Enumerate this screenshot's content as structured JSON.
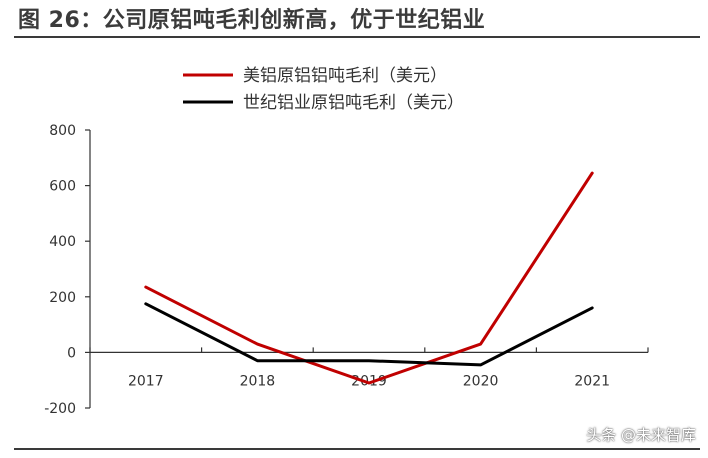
{
  "header": {
    "title": "图 26：公司原铝吨毛利创新高，优于世纪铝业"
  },
  "watermark": {
    "text": "头条 @未来智库"
  },
  "chart_data": {
    "type": "line",
    "title": "",
    "xlabel": "",
    "ylabel": "",
    "categories": [
      "2017",
      "2018",
      "2019",
      "2020",
      "2021"
    ],
    "ylim": [
      -200,
      800
    ],
    "yticks": [
      800,
      600,
      400,
      200,
      0,
      -200
    ],
    "grid": false,
    "legend_position": "top-center",
    "series": [
      {
        "name": "美铝原铝铝吨毛利（美元）",
        "color": "#C00000",
        "values": [
          235,
          30,
          -110,
          30,
          645
        ]
      },
      {
        "name": "世纪铝业原铝吨毛利（美元）",
        "color": "#000000",
        "values": [
          175,
          -30,
          -30,
          -45,
          160
        ]
      }
    ]
  }
}
